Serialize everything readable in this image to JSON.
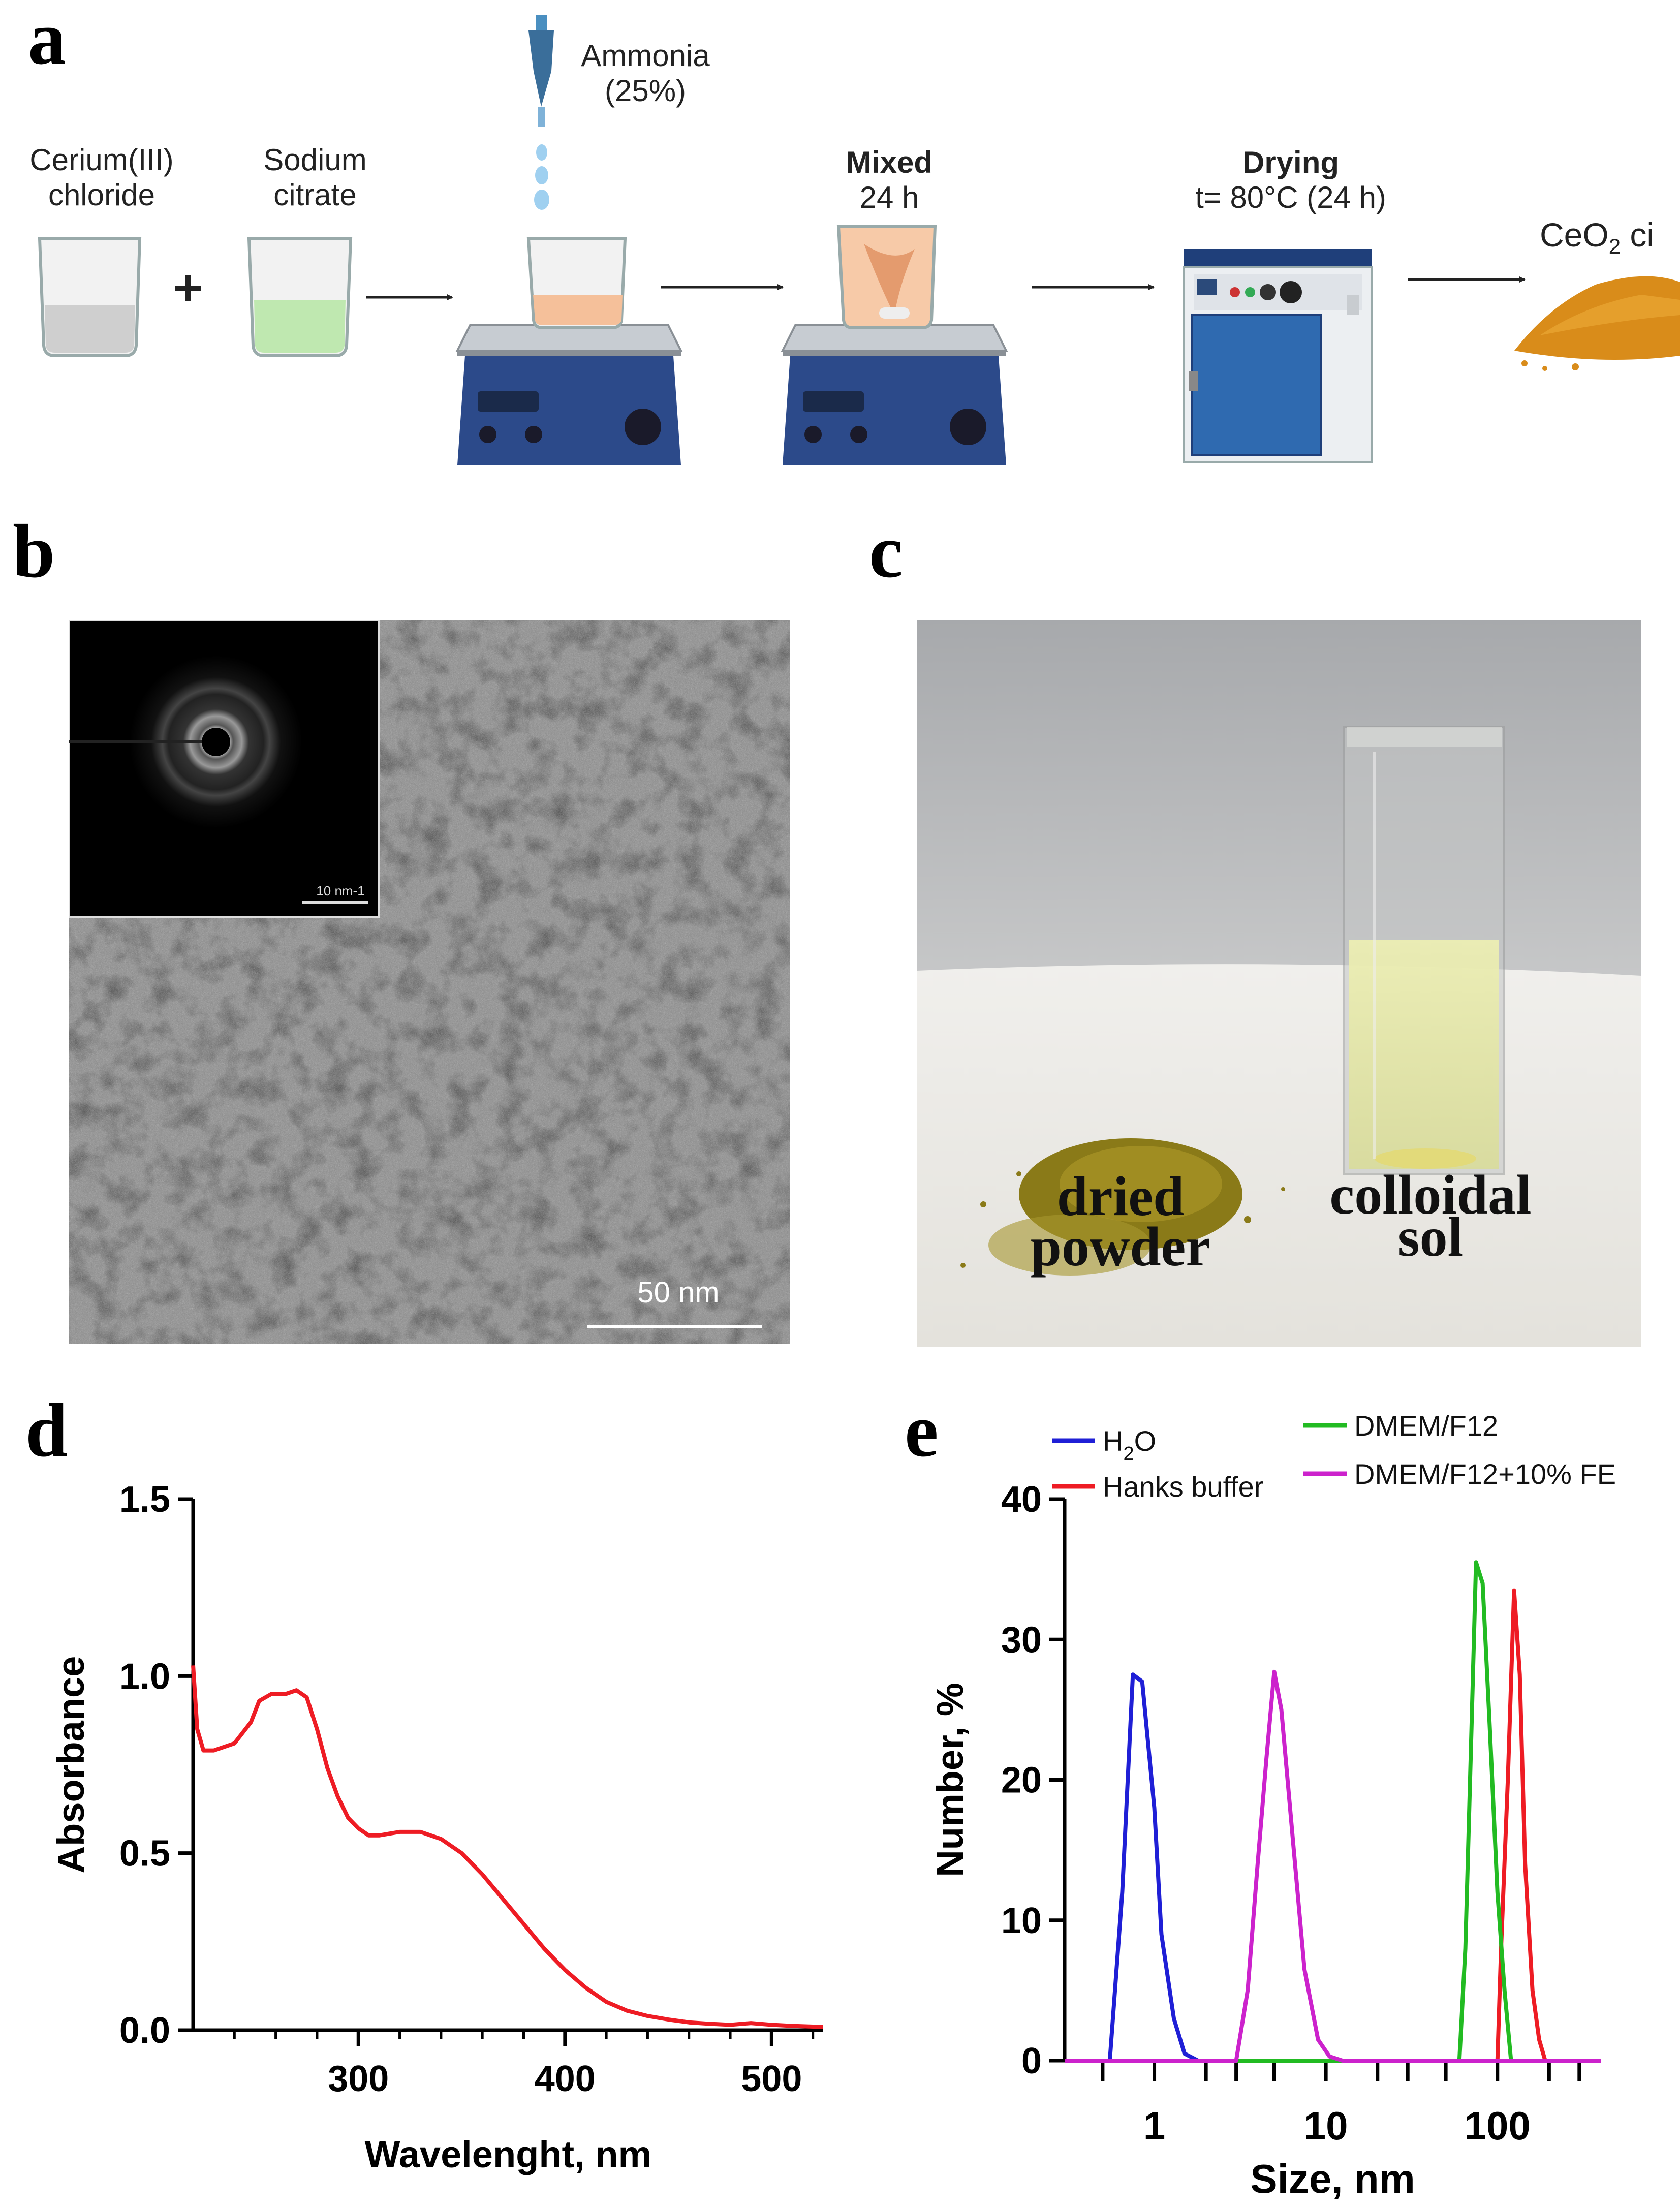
{
  "panels": {
    "a": "a",
    "b": "b",
    "c": "c",
    "d": "d",
    "e": "e"
  },
  "scheme": {
    "cerium_line1": "Cerium(III)",
    "cerium_line2": "chloride",
    "plus": "+",
    "citrate_line1": "Sodium",
    "citrate_line2": "citrate",
    "ammonia_line1": "Ammonia",
    "ammonia_line2": "(25%)",
    "mixed_title": "Mixed",
    "mixed_time": "24 h",
    "drying_title": "Drying",
    "drying_cond": "t= 80°C (24 h)",
    "product_prefix": "CeO",
    "product_sub": "2",
    "product_suffix": " ci"
  },
  "tem": {
    "scalebar": "50 nm",
    "saed_scalebar": "10 nm-1"
  },
  "photo": {
    "powder_line1": "dried",
    "powder_line2": "powder",
    "sol_line1": "colloidal",
    "sol_line2": "sol"
  },
  "colors": {
    "uv_line": "#ee1c24",
    "h2o": "#1f1fd6",
    "hanks": "#ee1c24",
    "dmem": "#22bb22",
    "fbs": "#cc22cc"
  },
  "chart_data": [
    {
      "type": "line",
      "panel": "d",
      "xlabel": "Wavelenght, nm",
      "ylabel": "Absorbance",
      "xlim": [
        220,
        525
      ],
      "ylim": [
        0,
        1.5
      ],
      "xticks": [
        300,
        400,
        500
      ],
      "yticks": [
        0.0,
        0.5,
        1.0,
        1.5
      ],
      "ytick_labels": [
        "0.0",
        "0.5",
        "1.0",
        "1.5"
      ],
      "series": [
        {
          "color": "#ee1c24",
          "x": [
            220,
            222,
            225,
            230,
            240,
            248,
            252,
            258,
            265,
            270,
            275,
            280,
            285,
            290,
            295,
            300,
            305,
            310,
            320,
            330,
            340,
            350,
            360,
            370,
            380,
            390,
            400,
            410,
            420,
            430,
            440,
            450,
            460,
            470,
            480,
            490,
            500,
            510,
            520,
            525
          ],
          "y": [
            1.03,
            0.85,
            0.79,
            0.79,
            0.81,
            0.87,
            0.93,
            0.95,
            0.95,
            0.96,
            0.94,
            0.85,
            0.74,
            0.66,
            0.6,
            0.57,
            0.55,
            0.55,
            0.56,
            0.56,
            0.54,
            0.5,
            0.44,
            0.37,
            0.3,
            0.23,
            0.17,
            0.12,
            0.08,
            0.055,
            0.04,
            0.03,
            0.022,
            0.018,
            0.015,
            0.02,
            0.015,
            0.012,
            0.01,
            0.01
          ]
        }
      ]
    },
    {
      "type": "line",
      "panel": "e",
      "xlabel": "Size, nm",
      "ylabel": "Number, %",
      "xscale": "log",
      "xlim": [
        0.3,
        400
      ],
      "ylim": [
        0,
        40
      ],
      "xtick_labels": [
        "1",
        "10",
        "100"
      ],
      "xtick_values": [
        1,
        10,
        100
      ],
      "yticks": [
        0,
        10,
        20,
        30,
        40
      ],
      "legend": "top",
      "series": [
        {
          "name": "H2O",
          "name_main": "H",
          "name_sub": "2",
          "name_end": "O",
          "color": "#1f1fd6",
          "x": [
            0.3,
            0.55,
            0.65,
            0.75,
            0.85,
            1.0,
            1.1,
            1.3,
            1.5,
            1.8,
            2.1,
            2.5,
            400
          ],
          "y": [
            0,
            0,
            12,
            27.5,
            27,
            18,
            9,
            3,
            0.5,
            0,
            0,
            0,
            0
          ]
        },
        {
          "name": "Hanks buffer",
          "color": "#ee1c24",
          "x": [
            0.3,
            100,
            105,
            115,
            125,
            135,
            145,
            160,
            175,
            190,
            400
          ],
          "y": [
            0,
            0,
            8,
            20,
            33.5,
            27.5,
            14,
            5,
            1.5,
            0,
            0
          ]
        },
        {
          "name": "DMEM/F12",
          "color": "#22bb22",
          "x": [
            0.3,
            60,
            65,
            70,
            75,
            82,
            90,
            100,
            110,
            120,
            400
          ],
          "y": [
            0,
            0,
            8,
            22,
            35.5,
            34,
            24,
            12,
            5,
            0,
            0
          ]
        },
        {
          "name": "DMEM/F12+10% FE",
          "color": "#cc22cc",
          "x": [
            0.3,
            3.0,
            3.5,
            4.0,
            4.5,
            5.0,
            5.5,
            6.5,
            7.5,
            9,
            10.5,
            12.5,
            400
          ],
          "y": [
            0,
            0,
            5,
            14,
            21.5,
            27.7,
            25,
            15,
            6.5,
            1.5,
            0.3,
            0,
            0
          ]
        }
      ]
    }
  ]
}
